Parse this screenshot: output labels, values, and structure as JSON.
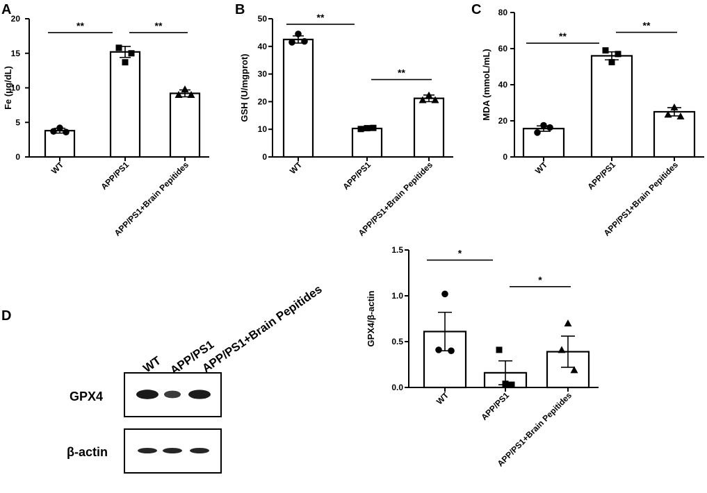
{
  "panels": {
    "A": "A",
    "B": "B",
    "C": "C",
    "D": "D"
  },
  "chart_data": [
    {
      "id": "A",
      "type": "bar",
      "ylabel": "Fe (μg/dL)",
      "categories": [
        "WT",
        "APP/PS1",
        "APP/PS1+Brain Pepitides"
      ],
      "values": [
        3.8,
        15.2,
        9.2
      ],
      "errors": [
        0.35,
        0.8,
        0.5
      ],
      "points": [
        [
          4.2,
          3.7,
          3.6
        ],
        [
          15.8,
          15.0,
          13.7
        ],
        [
          9.8,
          9.0,
          9.0
        ]
      ],
      "markers": [
        "circle",
        "square",
        "triangle"
      ],
      "ylim": [
        0,
        20
      ],
      "yticks": [
        0,
        5,
        10,
        15,
        20
      ],
      "yticklabels": [
        "0",
        "5",
        "10",
        "15",
        "20"
      ],
      "significance": [
        {
          "from": 0,
          "to": 1,
          "y": 18,
          "label": "**"
        },
        {
          "from": 1,
          "to": 2,
          "y": 18,
          "label": "**"
        }
      ]
    },
    {
      "id": "B",
      "type": "bar",
      "ylabel": "GSH (U/mgprot)",
      "categories": [
        "WT",
        "APP/PS1",
        "APP/PS1+Brain Pepitides"
      ],
      "values": [
        42.5,
        10.3,
        21.2
      ],
      "errors": [
        1.3,
        0.5,
        1.2
      ],
      "points": [
        [
          44.5,
          41.5,
          41.8
        ],
        [
          10.1,
          10.5,
          10.4
        ],
        [
          22.3,
          20.6,
          20.6
        ]
      ],
      "markers": [
        "circle",
        "square",
        "triangle"
      ],
      "ylim": [
        0,
        50
      ],
      "yticks": [
        0,
        10,
        20,
        30,
        40,
        50
      ],
      "yticklabels": [
        "0",
        "10",
        "20",
        "30",
        "40",
        "50"
      ],
      "significance": [
        {
          "from": 0,
          "to": 1,
          "y": 48,
          "label": "**"
        },
        {
          "from": 1,
          "to": 2,
          "y": 28,
          "label": "**"
        }
      ]
    },
    {
      "id": "C",
      "type": "bar",
      "ylabel": "MDA (mmoL/mL)",
      "categories": [
        "WT",
        "APP/PS1",
        "APP/PS1+Brain Pepitides"
      ],
      "values": [
        15.7,
        56.0,
        25.0
      ],
      "errors": [
        1.5,
        2.2,
        2.3
      ],
      "points": [
        [
          17.5,
          13.5,
          16.3
        ],
        [
          59.0,
          57.0,
          52.5
        ],
        [
          27.5,
          23.5,
          22.5
        ]
      ],
      "markers": [
        "circle",
        "square",
        "triangle"
      ],
      "ylim": [
        0,
        80
      ],
      "yticks": [
        0,
        20,
        40,
        60,
        80
      ],
      "yticklabels": [
        "0",
        "20",
        "40",
        "60",
        "80"
      ],
      "significance": [
        {
          "from": 0,
          "to": 1,
          "y": 63,
          "label": "**"
        },
        {
          "from": 1,
          "to": 2,
          "y": 69,
          "label": "**"
        }
      ]
    },
    {
      "id": "D-quant",
      "type": "bar",
      "ylabel": "GPX4/β-actin",
      "categories": [
        "WT",
        "APP/PS1",
        "APP/PS1+Brain Pepitides"
      ],
      "values": [
        0.61,
        0.16,
        0.39
      ],
      "errors": [
        0.21,
        0.13,
        0.17
      ],
      "points": [
        [
          1.02,
          0.41,
          0.4
        ],
        [
          0.41,
          0.03,
          0.04
        ],
        [
          0.7,
          0.41,
          0.19
        ]
      ],
      "markers": [
        "circle",
        "square",
        "triangle"
      ],
      "ylim": [
        0,
        1.5
      ],
      "yticks": [
        0,
        0.5,
        1.0,
        1.5
      ],
      "yticklabels": [
        "0.0",
        "0.5",
        "1.0",
        "1.5"
      ],
      "significance": [
        {
          "from": 0,
          "to": 1,
          "y": 1.39,
          "label": "*"
        },
        {
          "from": 1,
          "to": 2,
          "y": 1.1,
          "label": "*"
        }
      ]
    }
  ],
  "blot": {
    "lanes": [
      "WT",
      "APP/PS1",
      "APP/PS1+Brain Pepitides"
    ],
    "rows": [
      {
        "label": "GPX4",
        "intensity": [
          0.95,
          0.55,
          0.9
        ]
      },
      {
        "label": "β-actin",
        "intensity": [
          0.8,
          0.8,
          0.8
        ]
      }
    ]
  }
}
